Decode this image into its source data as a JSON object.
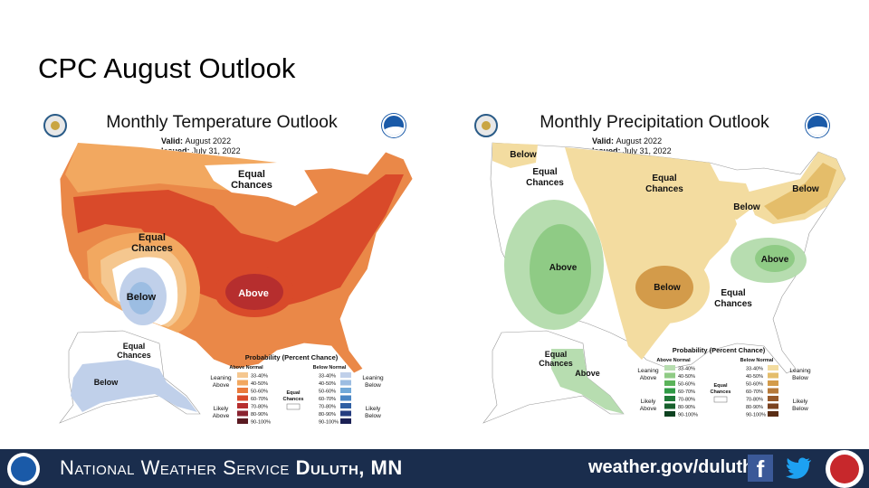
{
  "slide": {
    "title": "CPC August Outlook"
  },
  "temperature_map": {
    "title": "Monthly Temperature Outlook",
    "valid_label": "Valid:",
    "valid_value": "August 2022",
    "issued_label": "Issued:",
    "issued_value": "July 31, 2022",
    "labels": {
      "equal_north_1": "Equal",
      "equal_north_2": "Chances",
      "equal_west_1": "Equal",
      "equal_west_2": "Chances",
      "below": "Below",
      "above": "Above",
      "alaska_equal_1": "Equal",
      "alaska_equal_2": "Chances",
      "alaska_below": "Below"
    },
    "legend": {
      "title": "Probability (Percent Chance)",
      "above_header": "Above Normal",
      "below_header": "Below Normal",
      "ranges": [
        "33-40%",
        "40-50%",
        "50-60%",
        "60-70%",
        "70-80%",
        "80-90%",
        "90-100%"
      ],
      "above_colors": [
        "#f5c78f",
        "#f2a860",
        "#ea7b3c",
        "#d94a2a",
        "#b62e2e",
        "#8a2330",
        "#5a1a22"
      ],
      "below_colors": [
        "#c0d0ea",
        "#9cbde2",
        "#72a9d8",
        "#4a86c4",
        "#2f5fa3",
        "#263d80",
        "#1c2155"
      ],
      "leaning_above_1": "Leaning",
      "leaning_above_2": "Above",
      "likely_above_1": "Likely",
      "likely_above_2": "Above",
      "leaning_below_1": "Leaning",
      "leaning_below_2": "Below",
      "likely_below_1": "Likely",
      "likely_below_2": "Below",
      "equal_1": "Equal",
      "equal_2": "Chances"
    }
  },
  "precipitation_map": {
    "title": "Monthly Precipitation Outlook",
    "valid_label": "Valid:",
    "valid_value": "August 2022",
    "issued_label": "Issued:",
    "issued_value": "July 31, 2022",
    "labels": {
      "below_nw": "Below",
      "equal_nw_1": "Equal",
      "equal_nw_2": "Chances",
      "equal_n_1": "Equal",
      "equal_n_2": "Chances",
      "below_ne": "Below",
      "below_glakes": "Below",
      "above_sw": "Above",
      "above_se": "Above",
      "below_plains": "Below",
      "equal_s_1": "Equal",
      "equal_s_2": "Chances",
      "alaska_equal_1": "Equal",
      "alaska_equal_2": "Chances",
      "alaska_above": "Above"
    },
    "legend": {
      "title": "Probability (Percent Chance)",
      "above_header": "Above Normal",
      "below_header": "Below Normal",
      "ranges": [
        "33-40%",
        "40-50%",
        "50-60%",
        "60-70%",
        "70-80%",
        "80-90%",
        "90-100%"
      ],
      "above_colors": [
        "#b7ddb0",
        "#8fcb85",
        "#5bb35a",
        "#2f9a45",
        "#1f7a38",
        "#17602d",
        "#0e4220"
      ],
      "below_colors": [
        "#f3dca0",
        "#e4bd6a",
        "#d39b4a",
        "#b77a3a",
        "#97592a",
        "#7a421f",
        "#5a2d14"
      ],
      "leaning_above_1": "Leaning",
      "leaning_above_2": "Above",
      "likely_above_1": "Likely",
      "likely_above_2": "Above",
      "leaning_below_1": "Leaning",
      "leaning_below_2": "Below",
      "likely_below_1": "Likely",
      "likely_below_2": "Below",
      "equal_1": "Equal",
      "equal_2": "Chances"
    }
  },
  "footer": {
    "nws_text_1": "National Weather Service",
    "nws_text_2": "Duluth, MN",
    "url": "weather.gov/duluth",
    "facebook_icon": "facebook-icon",
    "twitter_icon": "twitter-icon",
    "colors": {
      "background": "#1a2d4d"
    }
  }
}
